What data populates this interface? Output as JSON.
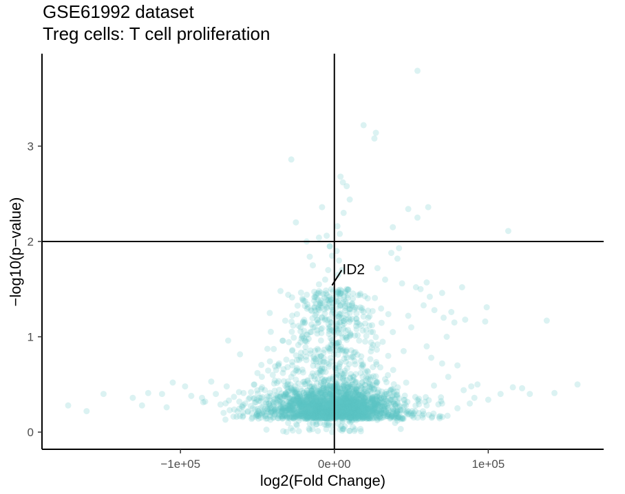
{
  "chart_data": {
    "type": "scatter",
    "title": "GSE61992 dataset",
    "subtitle": "Treg cells: T cell proliferation",
    "xlabel": "log2(Fold Change)",
    "ylabel": "−log10(p−value)",
    "xlim": [
      -190000,
      175000
    ],
    "ylim": [
      -0.18,
      3.97
    ],
    "x_ticks": [
      {
        "value": -100000,
        "label": "−1e+05"
      },
      {
        "value": 0,
        "label": "0e+00"
      },
      {
        "value": 100000,
        "label": "1e+05"
      }
    ],
    "y_ticks": [
      {
        "value": 0,
        "label": "0"
      },
      {
        "value": 1,
        "label": "1"
      },
      {
        "value": 2,
        "label": "2"
      },
      {
        "value": 3,
        "label": "3"
      }
    ],
    "grid": false,
    "point_color": "#5bc4c5",
    "point_opacity": 0.22,
    "reference_lines": [
      {
        "axis": "x",
        "value": 0
      },
      {
        "axis": "y",
        "value": 2
      }
    ],
    "annotations": [
      {
        "label": "ID2",
        "x": -1500,
        "y": 1.54
      }
    ],
    "series": [
      {
        "points": [
          [
            -173000,
            0.28
          ],
          [
            -161000,
            0.22
          ],
          [
            -150000,
            0.4
          ],
          [
            -131000,
            0.36
          ],
          [
            -125000,
            0.28
          ],
          [
            -121000,
            0.41
          ],
          [
            -112000,
            0.4
          ],
          [
            -109000,
            0.26
          ],
          [
            -105000,
            0.52
          ],
          [
            -97000,
            0.48
          ],
          [
            -93000,
            0.38
          ],
          [
            -86000,
            0.36
          ],
          [
            -84000,
            0.32
          ],
          [
            -80000,
            0.53
          ],
          [
            -77000,
            0.4
          ],
          [
            -74000,
            0.29
          ],
          [
            -70000,
            0.48
          ],
          [
            -68000,
            0.23
          ],
          [
            -62000,
            0.42
          ],
          [
            -58000,
            0.3
          ],
          [
            -55000,
            0.36
          ],
          [
            -52000,
            0.5
          ],
          [
            -50000,
            0.62
          ],
          [
            -47000,
            0.47
          ],
          [
            -44000,
            0.34
          ],
          [
            -69000,
            0.96
          ],
          [
            -40000,
            0.6
          ],
          [
            -36000,
            0.72
          ],
          [
            -33000,
            0.66
          ],
          [
            -28000,
            0.58
          ],
          [
            -25000,
            0.55
          ],
          [
            -42000,
            1.25
          ],
          [
            -35000,
            1.48
          ],
          [
            -30000,
            1.44
          ],
          [
            -22000,
            1.1
          ],
          [
            -20000,
            1.38
          ],
          [
            -28000,
            2.86
          ],
          [
            -25000,
            2.2
          ],
          [
            -18000,
            2.0
          ],
          [
            -16000,
            1.84
          ],
          [
            -14000,
            1.75
          ],
          [
            -10000,
            2.04
          ],
          [
            -8000,
            2.36
          ],
          [
            -5000,
            2.06
          ],
          [
            -3000,
            1.95
          ],
          [
            4000,
            2.68
          ],
          [
            5500,
            2.62
          ],
          [
            8000,
            2.58
          ],
          [
            10000,
            2.44
          ],
          [
            6000,
            2.3
          ],
          [
            2000,
            2.16
          ],
          [
            3500,
            2.08
          ],
          [
            19000,
            3.22
          ],
          [
            27000,
            3.14
          ],
          [
            26000,
            3.08
          ],
          [
            54000,
            3.79
          ],
          [
            48000,
            2.34
          ],
          [
            54000,
            2.25
          ],
          [
            61000,
            2.36
          ],
          [
            38000,
            2.15
          ],
          [
            113000,
            2.11
          ],
          [
            42000,
            1.93
          ],
          [
            37000,
            1.88
          ],
          [
            41000,
            1.82
          ],
          [
            28000,
            1.72
          ],
          [
            33000,
            1.6
          ],
          [
            44000,
            1.56
          ],
          [
            53000,
            1.52
          ],
          [
            60000,
            1.57
          ],
          [
            56000,
            1.5
          ],
          [
            62000,
            1.42
          ],
          [
            70000,
            1.46
          ],
          [
            83000,
            1.52
          ],
          [
            58000,
            1.33
          ],
          [
            65000,
            1.28
          ],
          [
            76000,
            1.26
          ],
          [
            78000,
            1.15
          ],
          [
            99000,
            1.31
          ],
          [
            85000,
            1.18
          ],
          [
            98000,
            1.16
          ],
          [
            71000,
            1.2
          ],
          [
            50000,
            1.1
          ],
          [
            48000,
            1.22
          ],
          [
            38000,
            1.05
          ],
          [
            138000,
            1.17
          ],
          [
            73000,
            1.0
          ],
          [
            60000,
            0.9
          ],
          [
            45000,
            0.85
          ],
          [
            35000,
            0.8
          ],
          [
            28000,
            0.92
          ],
          [
            63000,
            0.78
          ],
          [
            70000,
            0.72
          ],
          [
            80000,
            0.7
          ],
          [
            74000,
            0.58
          ],
          [
            89000,
            0.48
          ],
          [
            93000,
            0.5
          ],
          [
            84000,
            0.44
          ],
          [
            91000,
            0.36
          ],
          [
            88000,
            0.3
          ],
          [
            108000,
            0.4
          ],
          [
            116000,
            0.47
          ],
          [
            122000,
            0.46
          ],
          [
            127000,
            0.4
          ],
          [
            143000,
            0.41
          ],
          [
            158000,
            0.5
          ],
          [
            80000,
            0.25
          ],
          [
            70000,
            0.3
          ],
          [
            60000,
            0.28
          ],
          [
            55000,
            0.35
          ],
          [
            100000,
            0.34
          ],
          [
            -10000,
            1.55
          ],
          [
            -6000,
            1.6
          ],
          [
            -12000,
            1.35
          ],
          [
            -8000,
            1.2
          ],
          [
            5000,
            1.7
          ],
          [
            8000,
            1.5
          ],
          [
            12000,
            1.4
          ],
          [
            10000,
            1.25
          ],
          [
            15000,
            1.15
          ],
          [
            18000,
            1.3
          ],
          [
            22000,
            1.2
          ],
          [
            25000,
            1.05
          ],
          [
            -15000,
            1.05
          ],
          [
            -18000,
            0.95
          ],
          [
            20000,
            0.95
          ],
          [
            -3000,
            1.95
          ],
          [
            -1500,
            1.85
          ],
          [
            1500,
            1.9
          ],
          [
            3000,
            1.8
          ],
          [
            -4000,
            1.7
          ],
          [
            2500,
            1.65
          ],
          [
            -2000,
            1.5
          ],
          [
            1000,
            1.42
          ],
          [
            -5000,
            1.3
          ],
          [
            4000,
            1.33
          ]
        ]
      }
    ]
  }
}
